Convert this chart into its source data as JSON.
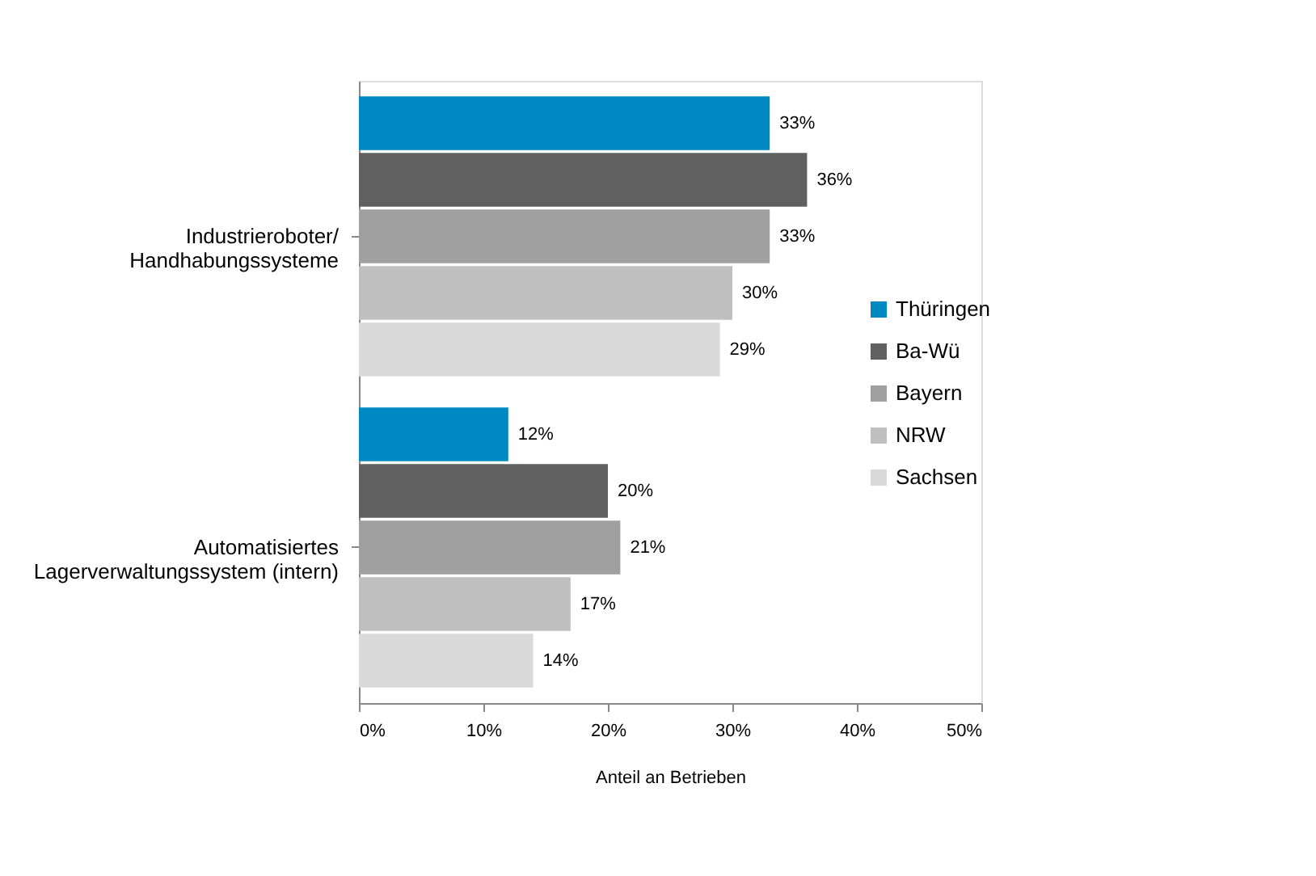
{
  "chart_data": {
    "type": "bar",
    "orientation": "horizontal",
    "xlabel": "Anteil an Betrieben",
    "categories": [
      "Industrieroboter/\nHandhabungssysteme",
      "Automatisiertes\nLagerverwaltungssystem (intern)"
    ],
    "series": [
      {
        "name": "Thüringen",
        "color": "#0088c2",
        "values": [
          33,
          12
        ],
        "value_labels": [
          "33%",
          "12%"
        ]
      },
      {
        "name": "Ba-Wü",
        "color": "#606060",
        "values": [
          36,
          20
        ],
        "value_labels": [
          "36%",
          "20%"
        ]
      },
      {
        "name": "Bayern",
        "color": "#a0a0a0",
        "values": [
          33,
          21
        ],
        "value_labels": [
          "33%",
          "21%"
        ]
      },
      {
        "name": "NRW",
        "color": "#bfbfbf",
        "values": [
          30,
          17
        ],
        "value_labels": [
          "30%",
          "17%"
        ]
      },
      {
        "name": "Sachsen",
        "color": "#d9d9d9",
        "values": [
          29,
          14
        ],
        "value_labels": [
          "29%",
          "14%"
        ]
      }
    ],
    "xlim": [
      0,
      50
    ],
    "xticks": [
      {
        "value": 0,
        "label": "0%"
      },
      {
        "value": 10,
        "label": "10%"
      },
      {
        "value": 20,
        "label": "20%"
      },
      {
        "value": 30,
        "label": "30%"
      },
      {
        "value": 40,
        "label": "40%"
      },
      {
        "value": 50,
        "label": "50%"
      }
    ],
    "grid": false,
    "legend": "right"
  }
}
